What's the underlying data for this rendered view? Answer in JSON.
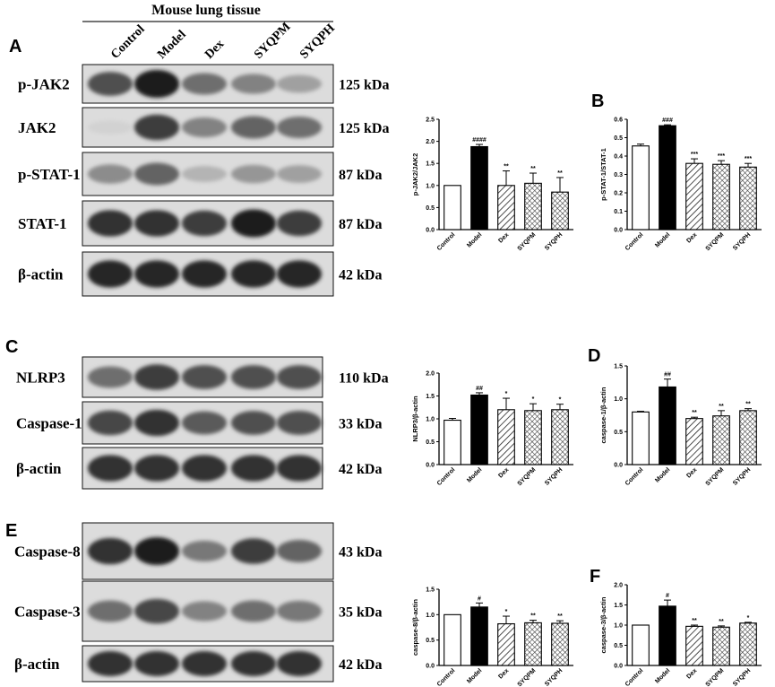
{
  "figure": {
    "header": "Mouse lung tissue",
    "columns": [
      "Control",
      "Model",
      "Dex",
      "SYQPM",
      "SYQPH"
    ]
  },
  "panels": [
    {
      "letter": "A",
      "rows": [
        {
          "protein": "p-JAK2",
          "mw": "125 kDa",
          "intensity": [
            0.7,
            0.95,
            0.55,
            0.45,
            0.3
          ]
        },
        {
          "protein": "JAK2",
          "mw": "125 kDa",
          "intensity": [
            0.05,
            0.8,
            0.45,
            0.6,
            0.55
          ]
        },
        {
          "protein": "p-STAT-1",
          "mw": "87 kDa",
          "intensity": [
            0.4,
            0.6,
            0.2,
            0.35,
            0.3
          ]
        },
        {
          "protein": "STAT-1",
          "mw": "87 kDa",
          "intensity": [
            0.85,
            0.85,
            0.8,
            0.95,
            0.8
          ]
        },
        {
          "protein": "β-actin",
          "mw": "42 kDa",
          "intensity": [
            0.9,
            0.9,
            0.9,
            0.9,
            0.9
          ]
        }
      ]
    },
    {
      "letter": "C",
      "rows": [
        {
          "protein": "NLRP3",
          "mw": "110 kDa",
          "intensity": [
            0.55,
            0.8,
            0.7,
            0.7,
            0.7
          ]
        },
        {
          "protein": "Caspase-1",
          "mw": "33 kDa",
          "intensity": [
            0.75,
            0.85,
            0.65,
            0.7,
            0.7
          ]
        },
        {
          "protein": "β-actin",
          "mw": "42 kDa",
          "intensity": [
            0.85,
            0.85,
            0.85,
            0.85,
            0.85
          ]
        }
      ]
    },
    {
      "letter": "E",
      "rows": [
        {
          "protein": "Caspase-8",
          "mw": "43 kDa",
          "intensity": [
            0.85,
            0.95,
            0.5,
            0.8,
            0.6
          ]
        },
        {
          "protein": "Caspase-3",
          "mw": "35 kDa",
          "intensity": [
            0.55,
            0.75,
            0.45,
            0.55,
            0.5
          ]
        },
        {
          "protein": "β-actin",
          "mw": "42 kDa",
          "intensity": [
            0.85,
            0.85,
            0.85,
            0.85,
            0.85
          ]
        }
      ]
    }
  ],
  "chart_data": [
    {
      "type": "bar",
      "panel": "",
      "categories": [
        "Control",
        "Model",
        "Dex",
        "SYQPM",
        "SYQPH"
      ],
      "values": [
        1.0,
        1.88,
        1.0,
        1.05,
        0.85
      ],
      "errors": [
        0.0,
        0.05,
        0.33,
        0.23,
        0.33
      ],
      "ylabel": "p-JAK2/JAK2",
      "ylim": [
        0,
        2.5
      ],
      "yticks": [
        "0.0",
        "0.5",
        "1.0",
        "1.5",
        "2.0",
        "2.5"
      ],
      "annotations": [
        "",
        "####",
        "**",
        "**",
        "**"
      ]
    },
    {
      "type": "bar",
      "panel": "B",
      "categories": [
        "Control",
        "Model",
        "Dex",
        "SYQPM",
        "SYQPH"
      ],
      "values": [
        0.455,
        0.565,
        0.36,
        0.355,
        0.34
      ],
      "errors": [
        0.01,
        0.005,
        0.025,
        0.02,
        0.02
      ],
      "ylabel": "p-STAT-1/STAT-1",
      "ylim": [
        0,
        0.6
      ],
      "yticks": [
        "0.0",
        "0.1",
        "0.2",
        "0.3",
        "0.4",
        "0.5",
        "0.6"
      ],
      "annotations": [
        "",
        "###",
        "***",
        "***",
        "***"
      ]
    },
    {
      "type": "bar",
      "panel": "",
      "categories": [
        "Control",
        "Model",
        "Dex",
        "SYQPM",
        "SYQPH"
      ],
      "values": [
        0.97,
        1.52,
        1.2,
        1.18,
        1.2
      ],
      "errors": [
        0.04,
        0.05,
        0.25,
        0.15,
        0.12
      ],
      "ylabel": "NLRP3/β-actin",
      "ylim": [
        0,
        2.0
      ],
      "yticks": [
        "0.0",
        "0.5",
        "1.0",
        "1.5",
        "2.0"
      ],
      "annotations": [
        "",
        "##",
        "*",
        "*",
        "*"
      ]
    },
    {
      "type": "bar",
      "panel": "D",
      "categories": [
        "Control",
        "Model",
        "Dex",
        "SYQPM",
        "SYQPH"
      ],
      "values": [
        0.8,
        1.18,
        0.7,
        0.74,
        0.82
      ],
      "errors": [
        0.01,
        0.12,
        0.02,
        0.08,
        0.03
      ],
      "ylabel": "caspase-1/β-actin",
      "ylim": [
        0,
        1.5
      ],
      "yticks": [
        "0.0",
        "0.5",
        "1.0",
        "1.5"
      ],
      "annotations": [
        "",
        "##",
        "**",
        "**",
        "**"
      ]
    },
    {
      "type": "bar",
      "panel": "",
      "categories": [
        "Control",
        "Model",
        "Dex",
        "SYQPM",
        "SYQPH"
      ],
      "values": [
        1.0,
        1.15,
        0.82,
        0.84,
        0.83
      ],
      "errors": [
        0.0,
        0.08,
        0.15,
        0.05,
        0.05
      ],
      "ylabel": "caspase-8/β-actin",
      "ylim": [
        0,
        1.5
      ],
      "yticks": [
        "0.0",
        "0.5",
        "1.0",
        "1.5"
      ],
      "annotations": [
        "",
        "#",
        "*",
        "**",
        "**"
      ]
    },
    {
      "type": "bar",
      "panel": "F",
      "categories": [
        "Control",
        "Model",
        "Dex",
        "SYQPM",
        "SYQPH"
      ],
      "values": [
        1.0,
        1.47,
        0.97,
        0.95,
        1.05
      ],
      "errors": [
        0.0,
        0.15,
        0.03,
        0.03,
        0.02
      ],
      "ylabel": "caspase-3/β-actin",
      "ylim": [
        0,
        2.0
      ],
      "yticks": [
        "0.0",
        "0.5",
        "1.0",
        "1.5",
        "2.0"
      ],
      "annotations": [
        "",
        "#",
        "**",
        "**",
        "*"
      ]
    }
  ],
  "colors": {
    "model_bar": "#000000",
    "control_bar": "#ffffff",
    "hatch": "#222222"
  }
}
